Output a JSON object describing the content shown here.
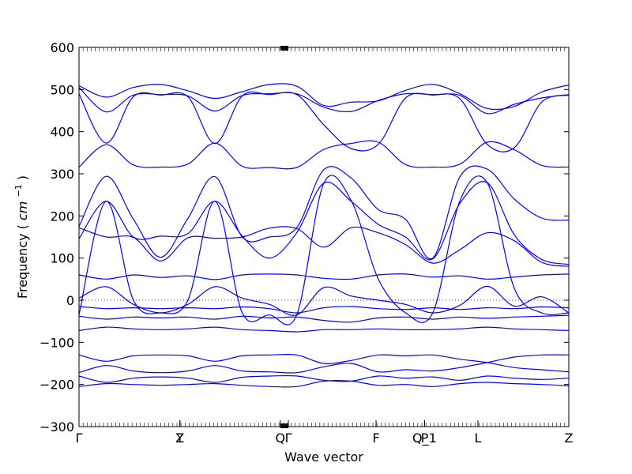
{
  "chart_data": {
    "type": "line",
    "title": "",
    "xlabel": "Wave vector",
    "ylabel_text": "Frequency",
    "ylabel_unit": "cm",
    "ylabel_exp": "−1",
    "ylim": [
      -300,
      600
    ],
    "yticks": [
      {
        "value": 600,
        "label": "600"
      },
      {
        "value": 500,
        "label": "500"
      },
      {
        "value": 400,
        "label": "400"
      },
      {
        "value": 300,
        "label": "300"
      },
      {
        "value": 200,
        "label": "200"
      },
      {
        "value": 100,
        "label": "100"
      },
      {
        "value": 0,
        "label": "0"
      },
      {
        "value": -100,
        "label": "−100"
      },
      {
        "value": -200,
        "label": "−200"
      },
      {
        "value": -300,
        "label": "−300"
      }
    ],
    "x_path": [
      {
        "pos": 0.0,
        "label": "Γ"
      },
      {
        "pos": 0.206,
        "label": "Y"
      },
      {
        "pos": 0.206,
        "label": "Z"
      },
      {
        "pos": 0.411,
        "label": "Q"
      },
      {
        "pos": 0.4275,
        "label": "Γ"
      },
      {
        "pos": 0.6065,
        "label": "F"
      },
      {
        "pos": 0.7055,
        "label": "P"
      },
      {
        "pos": 0.7055,
        "label": "Q_1"
      },
      {
        "pos": 0.8145,
        "label": "L"
      },
      {
        "pos": 1.0,
        "label": "Z"
      }
    ],
    "line_color": "#0000ff",
    "zero_line": true,
    "bands": [
      [
        509,
        482,
        505,
        512,
        497,
        479,
        495,
        512,
        508,
        462,
        470,
        473,
        498,
        512,
        490,
        455,
        460,
        494,
        511
      ],
      [
        505,
        447,
        487,
        488,
        485,
        449,
        486,
        490,
        490,
        458,
        448,
        474,
        490,
        488,
        486,
        443,
        465,
        480,
        488
      ],
      [
        490,
        373,
        483,
        487,
        483,
        372,
        485,
        488,
        488,
        416,
        360,
        370,
        480,
        487,
        478,
        370,
        362,
        470,
        487
      ],
      [
        316,
        369,
        321,
        316,
        323,
        373,
        318,
        315,
        315,
        358,
        372,
        375,
        322,
        316,
        323,
        375,
        357,
        320,
        316
      ],
      [
        175,
        294,
        192,
        102,
        194,
        293,
        150,
        150,
        172,
        310,
        290,
        215,
        192,
        100,
        293,
        311,
        240,
        195,
        190
      ],
      [
        146,
        235,
        150,
        152,
        158,
        235,
        152,
        100,
        160,
        278,
        235,
        180,
        150,
        98,
        230,
        279,
        155,
        97,
        85
      ],
      [
        172,
        150,
        149,
        93,
        148,
        147,
        150,
        171,
        170,
        126,
        172,
        160,
        132,
        88,
        120,
        160,
        141,
        90,
        80
      ],
      [
        60,
        50,
        60,
        54,
        58,
        49,
        60,
        62,
        60,
        52,
        50,
        60,
        62,
        55,
        58,
        50,
        55,
        60,
        62
      ],
      [
        -35,
        235,
        0,
        -30,
        0,
        235,
        -30,
        -35,
        -35,
        278,
        237,
        50,
        -30,
        -30,
        236,
        279,
        28,
        -30,
        -30
      ],
      [
        5,
        32,
        -10,
        -30,
        -10,
        32,
        5,
        -10,
        -35,
        30,
        10,
        0,
        -10,
        -30,
        -12,
        33,
        -14,
        8,
        -30
      ],
      [
        -15,
        -20,
        -18,
        -20,
        -18,
        -20,
        -16,
        -20,
        -30,
        -18,
        -15,
        -20,
        -22,
        -18,
        -22,
        -18,
        -20,
        -16,
        -18
      ],
      [
        -38,
        -45,
        -40,
        -42,
        -40,
        -45,
        -38,
        -42,
        -40,
        -48,
        -52,
        -42,
        -40,
        -45,
        -40,
        -43,
        -40,
        -38,
        -36
      ],
      [
        -72,
        -64,
        -68,
        -70,
        -68,
        -64,
        -70,
        -72,
        -75,
        -70,
        -70,
        -68,
        -70,
        -70,
        -68,
        -64,
        -68,
        -70,
        -72
      ],
      [
        -130,
        -145,
        -132,
        -130,
        -132,
        -145,
        -132,
        -130,
        -130,
        -150,
        -143,
        -130,
        -132,
        -130,
        -140,
        -148,
        -160,
        -165,
        -170
      ],
      [
        -172,
        -155,
        -168,
        -172,
        -168,
        -155,
        -168,
        -170,
        -172,
        -158,
        -150,
        -170,
        -165,
        -168,
        -160,
        -148,
        -135,
        -130,
        -130
      ],
      [
        -180,
        -195,
        -185,
        -182,
        -185,
        -195,
        -183,
        -180,
        -180,
        -190,
        -192,
        -180,
        -185,
        -182,
        -190,
        -180,
        -185,
        -188,
        -185
      ],
      [
        -205,
        -198,
        -200,
        -202,
        -200,
        -198,
        -202,
        -205,
        -205,
        -192,
        -192,
        -202,
        -200,
        -205,
        -198,
        -195,
        -198,
        -200,
        -203
      ]
    ]
  }
}
